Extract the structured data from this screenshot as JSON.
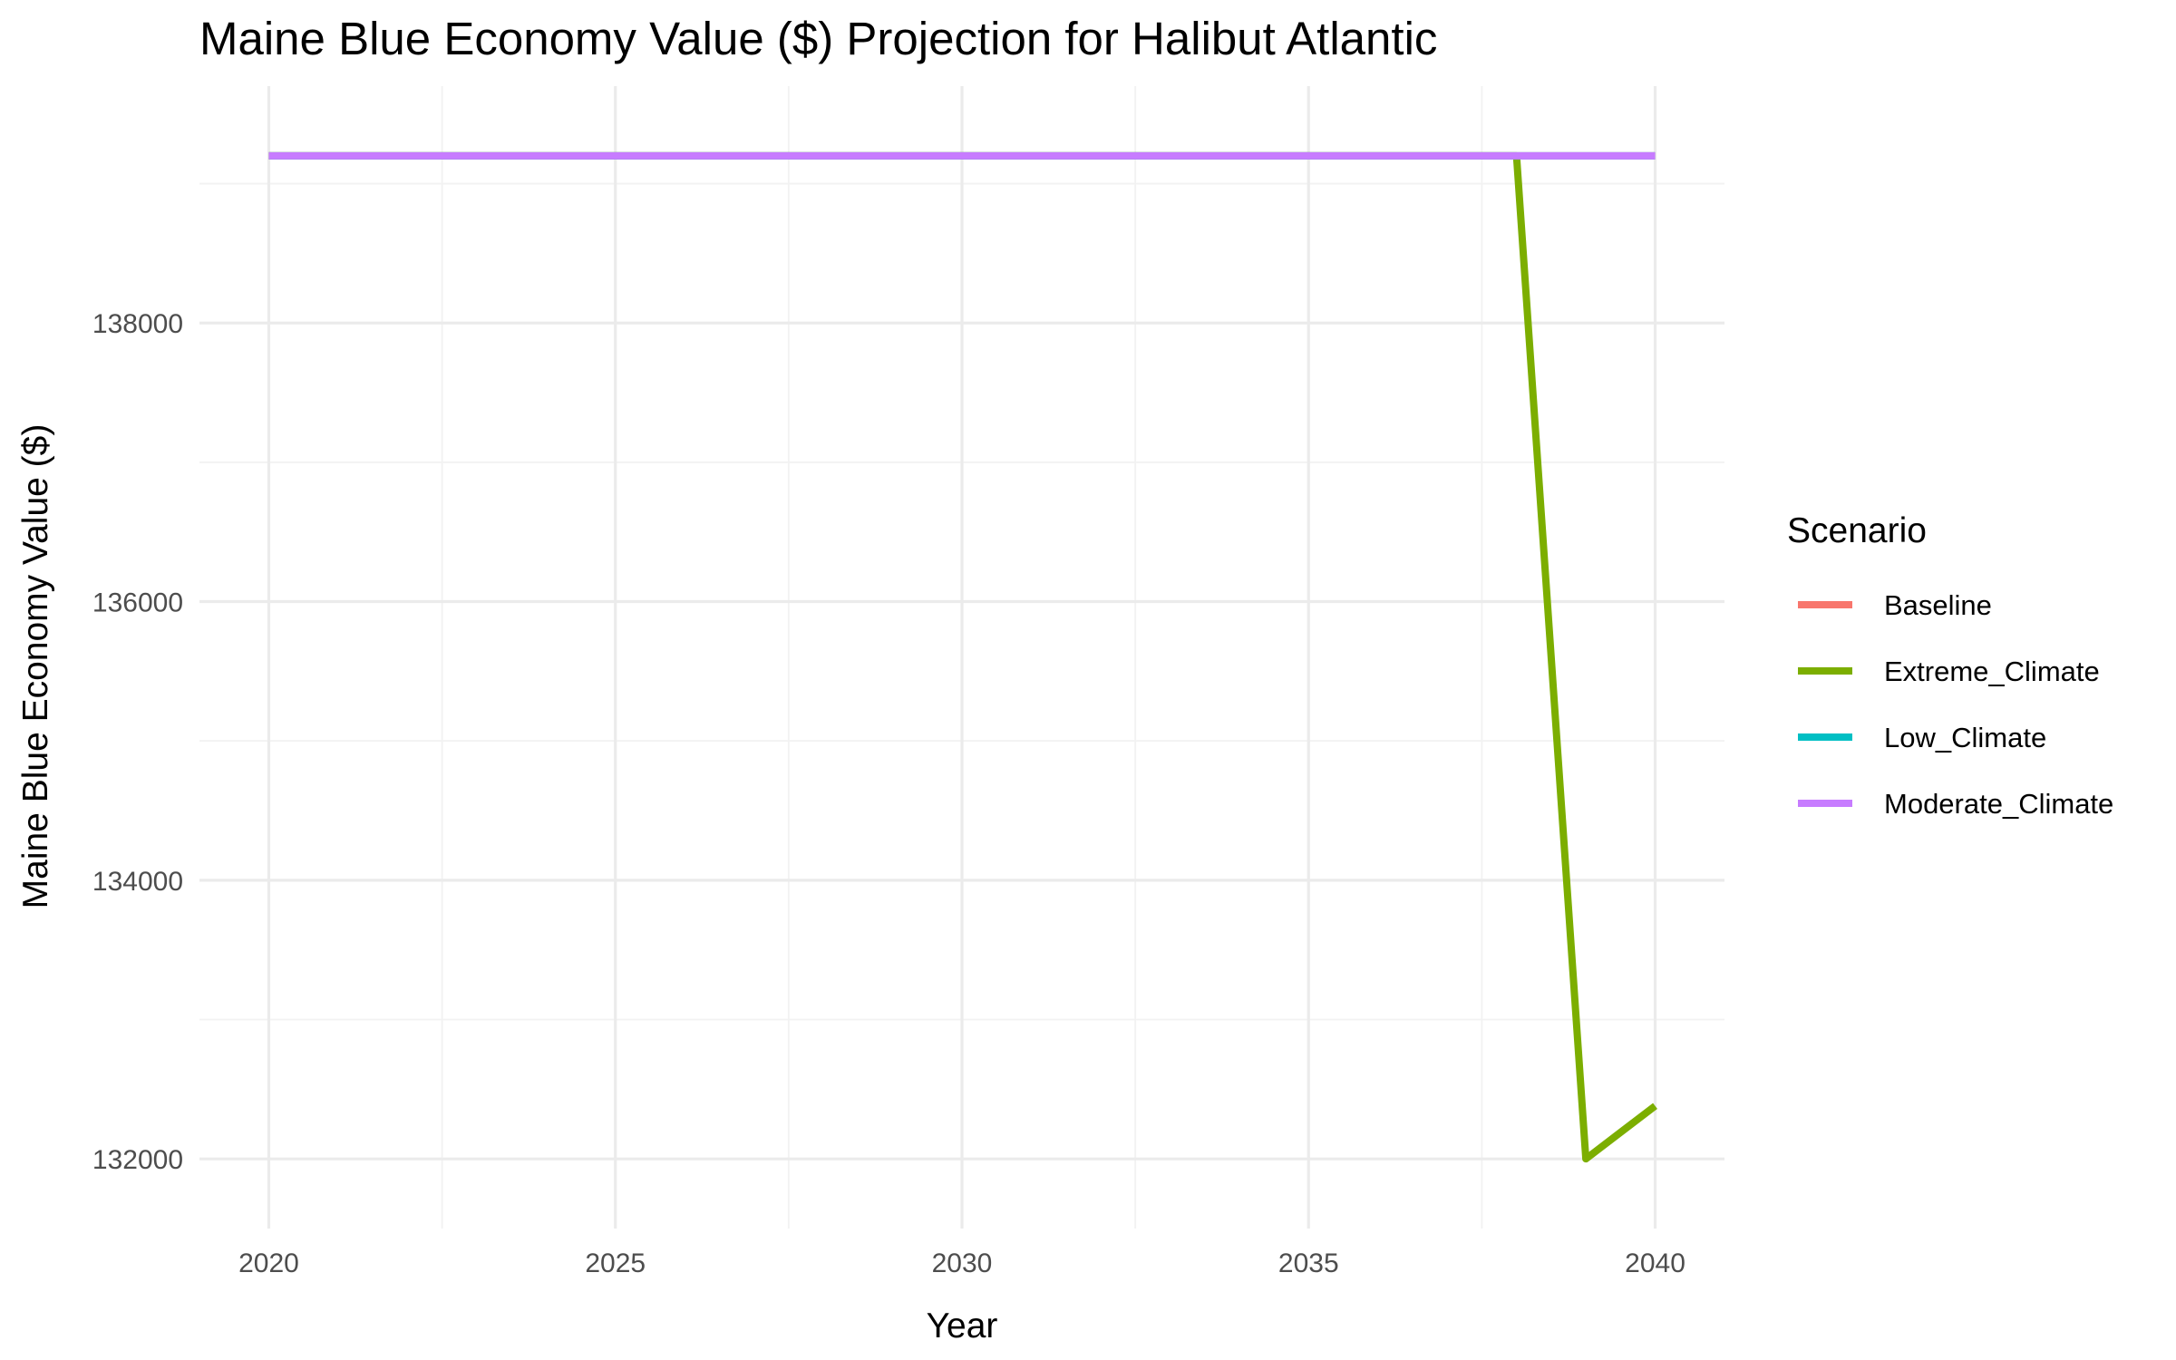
{
  "chart_data": {
    "type": "line",
    "title": "Maine Blue Economy Value ($) Projection for Halibut Atlantic",
    "xlabel": "Year",
    "ylabel": "Maine Blue Economy Value ($)",
    "xlim": [
      2019,
      2041
    ],
    "ylim": [
      131500,
      139700
    ],
    "x_ticks": [
      2020,
      2025,
      2030,
      2035,
      2040
    ],
    "y_ticks": [
      132000,
      134000,
      136000,
      138000
    ],
    "grid": true,
    "legend": {
      "title": "Scenario",
      "position": "right"
    },
    "x": [
      2020,
      2021,
      2022,
      2023,
      2024,
      2025,
      2026,
      2027,
      2028,
      2029,
      2030,
      2031,
      2032,
      2033,
      2034,
      2035,
      2036,
      2037,
      2038,
      2039,
      2040
    ],
    "series": [
      {
        "name": "Baseline",
        "color": "#F8766D",
        "values": [
          139200,
          139200,
          139200,
          139200,
          139200,
          139200,
          139200,
          139200,
          139200,
          139200,
          139200,
          139200,
          139200,
          139200,
          139200,
          139200,
          139200,
          139200,
          139200,
          139200,
          139200
        ]
      },
      {
        "name": "Extreme_Climate",
        "color": "#7CAE00",
        "values": [
          139200,
          139200,
          139200,
          139200,
          139200,
          139200,
          139200,
          139200,
          139200,
          139200,
          139200,
          139200,
          139200,
          139200,
          139200,
          139200,
          139200,
          139200,
          139200,
          132000,
          132380
        ]
      },
      {
        "name": "Low_Climate",
        "color": "#00BFC4",
        "values": [
          139200,
          139200,
          139200,
          139200,
          139200,
          139200,
          139200,
          139200,
          139200,
          139200,
          139200,
          139200,
          139200,
          139200,
          139200,
          139200,
          139200,
          139200,
          139200,
          139200,
          139200
        ]
      },
      {
        "name": "Moderate_Climate",
        "color": "#C77CFF",
        "values": [
          139200,
          139200,
          139200,
          139200,
          139200,
          139200,
          139200,
          139200,
          139200,
          139200,
          139200,
          139200,
          139200,
          139200,
          139200,
          139200,
          139200,
          139200,
          139200,
          139200,
          139200
        ]
      }
    ]
  }
}
